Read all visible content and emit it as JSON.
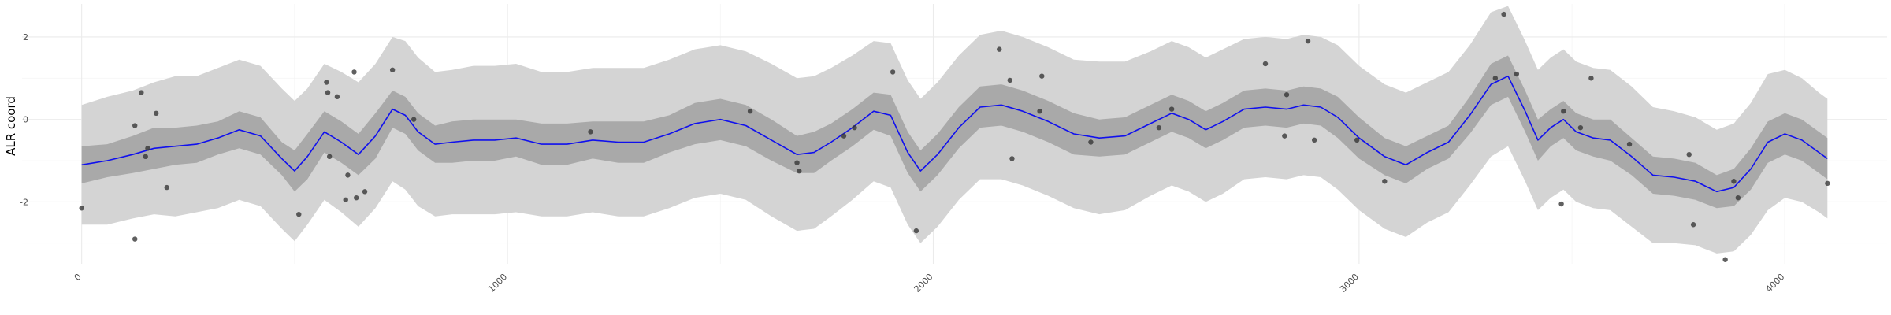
{
  "chart_data": {
    "type": "line",
    "title": "",
    "xlabel": "",
    "ylabel": "ALR coord",
    "xlim": [
      -140,
      4240
    ],
    "ylim": [
      -3.5,
      2.8
    ],
    "x_ticks": [
      0,
      1000,
      2000,
      3000,
      4000
    ],
    "x_tick_labels": [
      "0",
      "1000",
      "2000",
      "3000",
      "4000"
    ],
    "y_ticks": [
      -2,
      0,
      2
    ],
    "y_tick_labels": [
      "-2",
      "0",
      "2"
    ],
    "grid": true,
    "legend": "none",
    "colors": {
      "line": "#1010ee",
      "inner_band": "#a9a9a9",
      "outer_band": "#d4d4d4",
      "points": "#333333",
      "grid_major": "#ebebeb",
      "grid_minor": "#f3f3f3"
    },
    "mean_line": {
      "x": [
        0,
        60,
        120,
        170,
        220,
        270,
        320,
        370,
        420,
        470,
        500,
        530,
        570,
        610,
        650,
        690,
        730,
        760,
        790,
        830,
        870,
        920,
        970,
        1020,
        1080,
        1140,
        1200,
        1260,
        1320,
        1380,
        1440,
        1500,
        1560,
        1620,
        1680,
        1720,
        1760,
        1810,
        1860,
        1900,
        1940,
        1970,
        2010,
        2060,
        2110,
        2160,
        2210,
        2270,
        2330,
        2390,
        2450,
        2510,
        2560,
        2600,
        2640,
        2680,
        2730,
        2780,
        2830,
        2870,
        2910,
        2950,
        3000,
        3060,
        3110,
        3160,
        3210,
        3260,
        3310,
        3350,
        3390,
        3420,
        3450,
        3480,
        3510,
        3550,
        3590,
        3640,
        3690,
        3740,
        3790,
        3840,
        3880,
        3920,
        3960,
        4000,
        4040,
        4080,
        4100
      ],
      "y": [
        -1.1,
        -1.0,
        -0.85,
        -0.7,
        -0.65,
        -0.6,
        -0.45,
        -0.25,
        -0.4,
        -0.95,
        -1.25,
        -0.9,
        -0.3,
        -0.55,
        -0.85,
        -0.4,
        0.25,
        0.1,
        -0.3,
        -0.6,
        -0.55,
        -0.5,
        -0.5,
        -0.45,
        -0.6,
        -0.6,
        -0.5,
        -0.55,
        -0.55,
        -0.35,
        -0.1,
        0.0,
        -0.15,
        -0.5,
        -0.85,
        -0.8,
        -0.55,
        -0.2,
        0.2,
        0.1,
        -0.8,
        -1.25,
        -0.85,
        -0.2,
        0.3,
        0.35,
        0.2,
        -0.05,
        -0.35,
        -0.45,
        -0.4,
        -0.1,
        0.15,
        0.0,
        -0.25,
        -0.05,
        0.25,
        0.3,
        0.25,
        0.35,
        0.3,
        0.05,
        -0.45,
        -0.9,
        -1.1,
        -0.8,
        -0.55,
        0.1,
        0.85,
        1.05,
        0.2,
        -0.5,
        -0.2,
        0.0,
        -0.3,
        -0.45,
        -0.5,
        -0.9,
        -1.35,
        -1.4,
        -1.5,
        -1.75,
        -1.65,
        -1.2,
        -0.55,
        -0.35,
        -0.5,
        -0.8,
        -0.95
      ],
      "inner_halfwidth": [
        0.45,
        0.4,
        0.45,
        0.5,
        0.45,
        0.45,
        0.4,
        0.45,
        0.45,
        0.4,
        0.5,
        0.55,
        0.5,
        0.5,
        0.5,
        0.55,
        0.45,
        0.45,
        0.45,
        0.45,
        0.5,
        0.5,
        0.5,
        0.45,
        0.5,
        0.5,
        0.45,
        0.5,
        0.5,
        0.45,
        0.5,
        0.5,
        0.5,
        0.5,
        0.45,
        0.5,
        0.45,
        0.45,
        0.45,
        0.5,
        0.5,
        0.5,
        0.5,
        0.5,
        0.5,
        0.5,
        0.5,
        0.5,
        0.5,
        0.45,
        0.45,
        0.45,
        0.45,
        0.45,
        0.45,
        0.45,
        0.45,
        0.45,
        0.45,
        0.45,
        0.45,
        0.5,
        0.5,
        0.45,
        0.45,
        0.4,
        0.4,
        0.45,
        0.5,
        0.5,
        0.5,
        0.5,
        0.45,
        0.45,
        0.45,
        0.45,
        0.5,
        0.45,
        0.45,
        0.45,
        0.45,
        0.4,
        0.45,
        0.5,
        0.5,
        0.5,
        0.5,
        0.5,
        0.5
      ],
      "outer_halfwidth": [
        1.45,
        1.55,
        1.55,
        1.6,
        1.7,
        1.65,
        1.7,
        1.7,
        1.7,
        1.7,
        1.7,
        1.65,
        1.65,
        1.7,
        1.75,
        1.75,
        1.75,
        1.8,
        1.8,
        1.75,
        1.75,
        1.8,
        1.8,
        1.8,
        1.75,
        1.75,
        1.75,
        1.8,
        1.8,
        1.8,
        1.8,
        1.8,
        1.8,
        1.85,
        1.85,
        1.85,
        1.8,
        1.75,
        1.7,
        1.75,
        1.75,
        1.75,
        1.75,
        1.75,
        1.75,
        1.8,
        1.8,
        1.8,
        1.8,
        1.85,
        1.8,
        1.75,
        1.75,
        1.75,
        1.75,
        1.75,
        1.7,
        1.7,
        1.7,
        1.7,
        1.7,
        1.75,
        1.75,
        1.75,
        1.75,
        1.7,
        1.7,
        1.7,
        1.75,
        1.7,
        1.7,
        1.7,
        1.7,
        1.7,
        1.7,
        1.7,
        1.7,
        1.7,
        1.65,
        1.6,
        1.55,
        1.5,
        1.55,
        1.6,
        1.65,
        1.55,
        1.5,
        1.45,
        1.45
      ]
    },
    "points": [
      {
        "x": 0,
        "y": -2.15
      },
      {
        "x": 125,
        "y": -0.15
      },
      {
        "x": 125,
        "y": -2.9
      },
      {
        "x": 140,
        "y": 0.65
      },
      {
        "x": 150,
        "y": -0.9
      },
      {
        "x": 155,
        "y": -0.7
      },
      {
        "x": 175,
        "y": 0.15
      },
      {
        "x": 200,
        "y": -1.65
      },
      {
        "x": 510,
        "y": -2.3
      },
      {
        "x": 575,
        "y": 0.9
      },
      {
        "x": 578,
        "y": 0.65
      },
      {
        "x": 582,
        "y": -0.9
      },
      {
        "x": 600,
        "y": 0.55
      },
      {
        "x": 620,
        "y": -1.95
      },
      {
        "x": 625,
        "y": -1.35
      },
      {
        "x": 640,
        "y": 1.15
      },
      {
        "x": 645,
        "y": -1.9
      },
      {
        "x": 665,
        "y": -1.75
      },
      {
        "x": 730,
        "y": 1.2
      },
      {
        "x": 780,
        "y": 0.0
      },
      {
        "x": 1195,
        "y": -0.3
      },
      {
        "x": 1570,
        "y": 0.2
      },
      {
        "x": 1680,
        "y": -1.05
      },
      {
        "x": 1685,
        "y": -1.25
      },
      {
        "x": 1790,
        "y": -0.4
      },
      {
        "x": 1815,
        "y": -0.2
      },
      {
        "x": 1905,
        "y": 1.15
      },
      {
        "x": 1960,
        "y": -2.7
      },
      {
        "x": 2155,
        "y": 1.7
      },
      {
        "x": 2180,
        "y": 0.95
      },
      {
        "x": 2185,
        "y": -0.95
      },
      {
        "x": 2250,
        "y": 0.2
      },
      {
        "x": 2255,
        "y": 1.05
      },
      {
        "x": 2370,
        "y": -0.55
      },
      {
        "x": 2530,
        "y": -0.2
      },
      {
        "x": 2560,
        "y": 0.25
      },
      {
        "x": 2780,
        "y": 1.35
      },
      {
        "x": 2825,
        "y": -0.4
      },
      {
        "x": 2830,
        "y": 0.6
      },
      {
        "x": 2880,
        "y": 1.9
      },
      {
        "x": 2895,
        "y": -0.5
      },
      {
        "x": 2995,
        "y": -0.5
      },
      {
        "x": 3060,
        "y": -1.5
      },
      {
        "x": 3320,
        "y": 1.0
      },
      {
        "x": 3340,
        "y": 2.55
      },
      {
        "x": 3370,
        "y": 1.1
      },
      {
        "x": 3475,
        "y": -2.05
      },
      {
        "x": 3480,
        "y": 0.2
      },
      {
        "x": 3520,
        "y": -0.2
      },
      {
        "x": 3545,
        "y": 1.0
      },
      {
        "x": 3635,
        "y": -0.6
      },
      {
        "x": 3775,
        "y": -0.85
      },
      {
        "x": 3785,
        "y": -2.55
      },
      {
        "x": 3860,
        "y": -3.4
      },
      {
        "x": 3880,
        "y": -1.5
      },
      {
        "x": 3890,
        "y": -1.9
      },
      {
        "x": 4100,
        "y": -1.55
      }
    ]
  }
}
